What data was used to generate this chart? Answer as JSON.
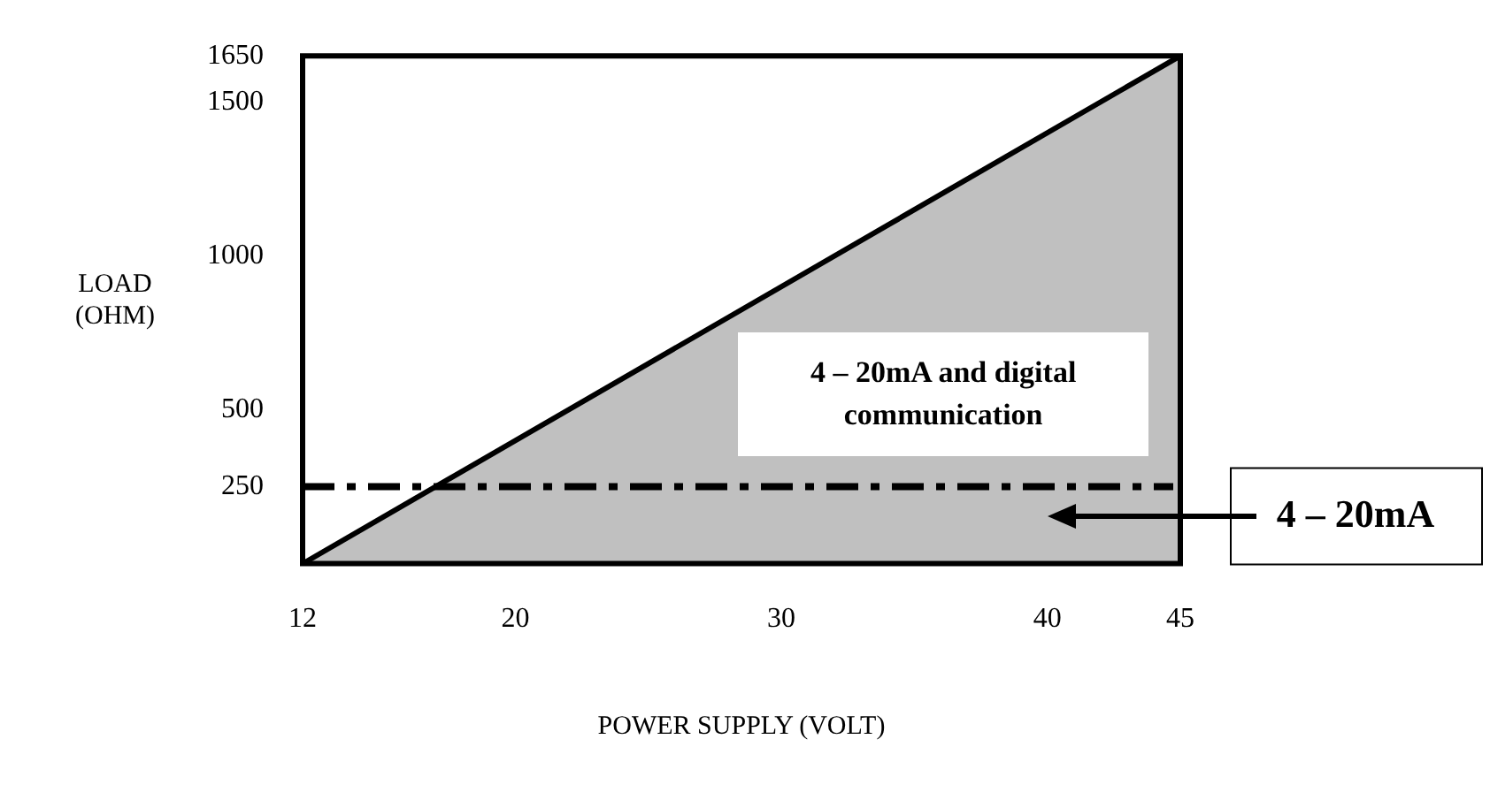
{
  "chart_data": {
    "type": "area",
    "xlabel": "POWER SUPPLY (VOLT)",
    "ylabel": "LOAD (OHM)",
    "x": [
      12,
      45
    ],
    "series": [
      {
        "color": "#c0c0c0",
        "values": [
          0,
          1650
        ]
      }
    ],
    "xlim": [
      12,
      45
    ],
    "xticks": [
      12,
      20,
      30,
      40,
      45
    ],
    "ylim": [
      0,
      1650
    ],
    "yticks": [
      250,
      500,
      1000,
      1500,
      1650
    ],
    "grid": false,
    "legend": false,
    "marker": "none",
    "ref_lines": [
      {
        "axis": "y",
        "value": 250,
        "label": "4 – 20mA",
        "line_style": "dashed",
        "color": "#000000"
      }
    ],
    "annotations": [
      "4 – 20mA and digital communication"
    ]
  }
}
